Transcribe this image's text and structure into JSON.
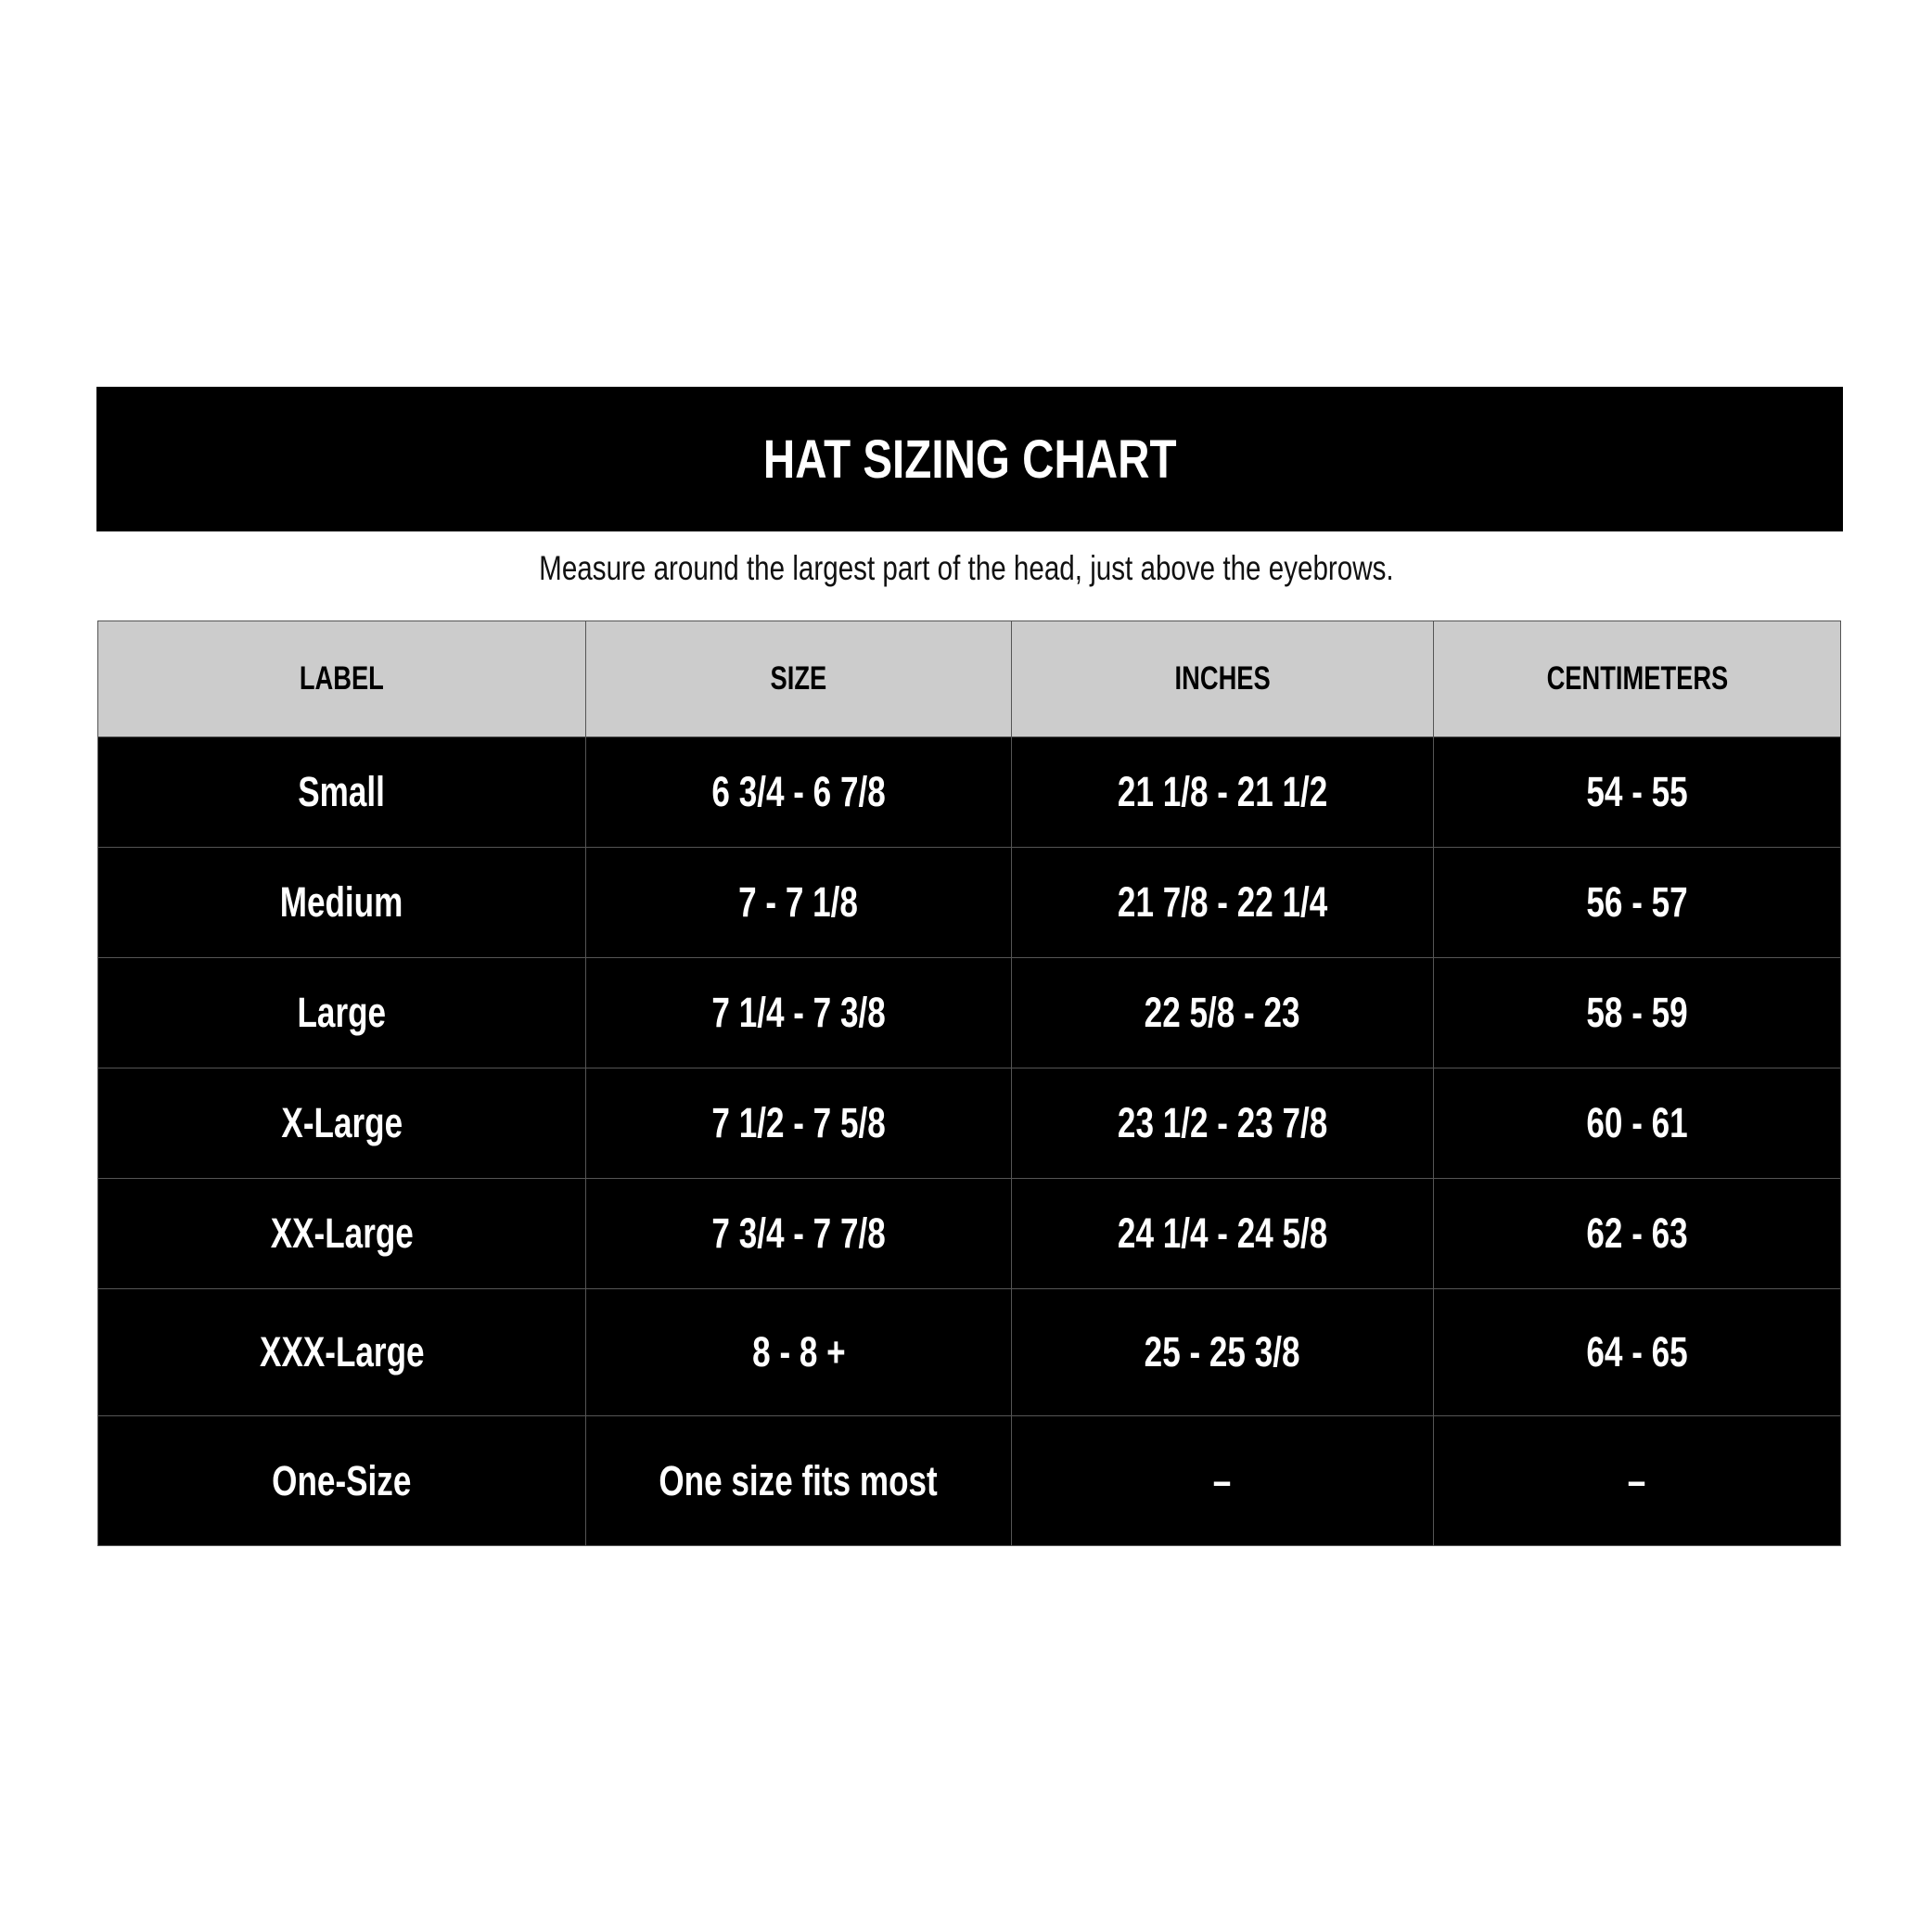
{
  "title": "HAT SIZING CHART",
  "subtitle": "Measure around the largest part of the head, just above the eyebrows.",
  "table": {
    "headers": [
      "LABEL",
      "SIZE",
      "INCHES",
      "CENTIMETERS"
    ],
    "rows": [
      [
        "Small",
        "6 3/4 - 6 7/8",
        "21 1/8 - 21 1/2",
        "54 - 55"
      ],
      [
        "Medium",
        "7 - 7 1/8",
        "21 7/8 - 22 1/4",
        "56 - 57"
      ],
      [
        "Large",
        "7 1/4 - 7 3/8",
        "22 5/8 - 23",
        "58 - 59"
      ],
      [
        "X-Large",
        "7 1/2 - 7 5/8",
        "23 1/2 - 23 7/8",
        "60 - 61"
      ],
      [
        "XX-Large",
        "7 3/4 - 7 7/8",
        "24 1/4 - 24 5/8",
        "62 - 63"
      ],
      [
        "XXX-Large",
        "8 - 8 +",
        "25 - 25 3/8",
        "64 - 65"
      ],
      [
        "One-Size",
        "One size fits most",
        "–",
        "–"
      ]
    ]
  },
  "colors": {
    "header_bg": "#cccccc",
    "row_bg": "#000000",
    "text_light": "#ffffff"
  }
}
